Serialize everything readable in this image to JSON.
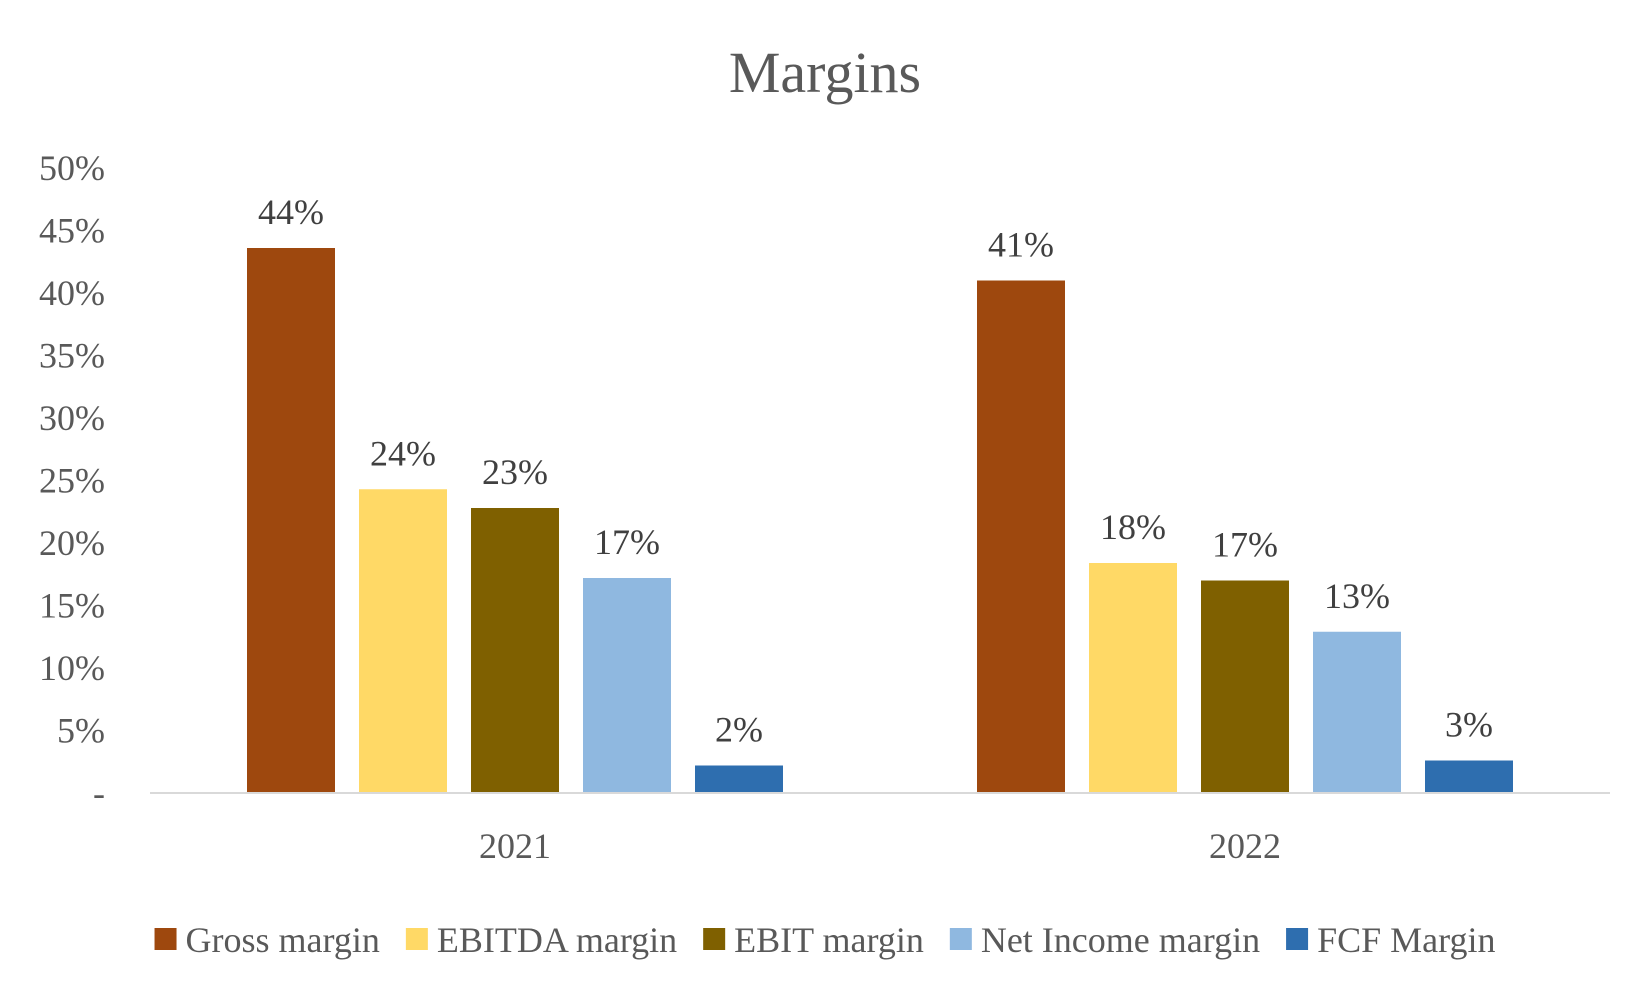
{
  "chart_data": {
    "type": "bar",
    "title": "Margins",
    "xlabel": "",
    "ylabel": "",
    "categories": [
      "2021",
      "2022"
    ],
    "ylim": [
      0,
      50
    ],
    "yticks": [
      0,
      5,
      10,
      15,
      20,
      25,
      30,
      35,
      40,
      45,
      50
    ],
    "ytick_labels": [
      "-",
      "5%",
      "10%",
      "15%",
      "20%",
      "25%",
      "30%",
      "35%",
      "40%",
      "45%",
      "50%"
    ],
    "grid": false,
    "legend_position": "bottom",
    "series": [
      {
        "name": "Gross margin",
        "color": "#9E480E",
        "values": [
          43.6,
          41.0
        ],
        "labels": [
          "44%",
          "41%"
        ]
      },
      {
        "name": "EBITDA margin",
        "color": "#FFD966",
        "values": [
          24.3,
          18.4
        ],
        "labels": [
          "24%",
          "18%"
        ]
      },
      {
        "name": "EBIT margin",
        "color": "#7F6000",
        "values": [
          22.8,
          17.0
        ],
        "labels": [
          "23%",
          "17%"
        ]
      },
      {
        "name": "Net Income margin",
        "color": "#8FB8E0",
        "values": [
          17.2,
          12.9
        ],
        "labels": [
          "17%",
          "13%"
        ]
      },
      {
        "name": "FCF Margin",
        "color": "#2E6EAF",
        "values": [
          2.2,
          2.6
        ],
        "labels": [
          "2%",
          "3%"
        ]
      }
    ]
  }
}
